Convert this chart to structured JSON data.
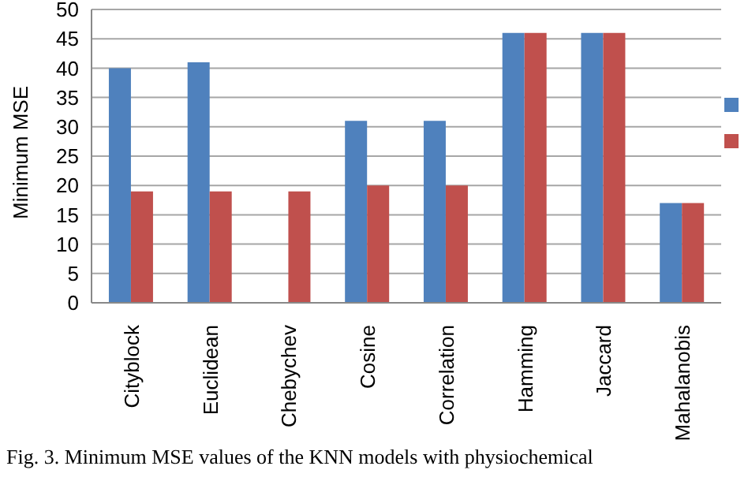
{
  "chart_data": {
    "type": "bar",
    "ylabel": "Minimum MSE",
    "categories": [
      "Cityblock",
      "Euclidean",
      "Chebychev",
      "Cosine",
      "Correlation",
      "Hamming",
      "Jaccard",
      "Mahalanobis"
    ],
    "series": [
      {
        "color": "#4f81bd",
        "values": [
          40,
          41,
          null,
          31,
          31,
          46,
          46,
          17
        ]
      },
      {
        "color": "#c0504d",
        "values": [
          19,
          19,
          19,
          20,
          20,
          46,
          46,
          17
        ]
      }
    ],
    "ylim": [
      0,
      50
    ],
    "yticks": [
      0,
      5,
      10,
      15,
      20,
      25,
      30,
      35,
      40,
      45,
      50
    ],
    "grid": "y",
    "annotations": [
      "Fig. 3. Minimum MSE values of the KNN models with physiochemical"
    ]
  }
}
